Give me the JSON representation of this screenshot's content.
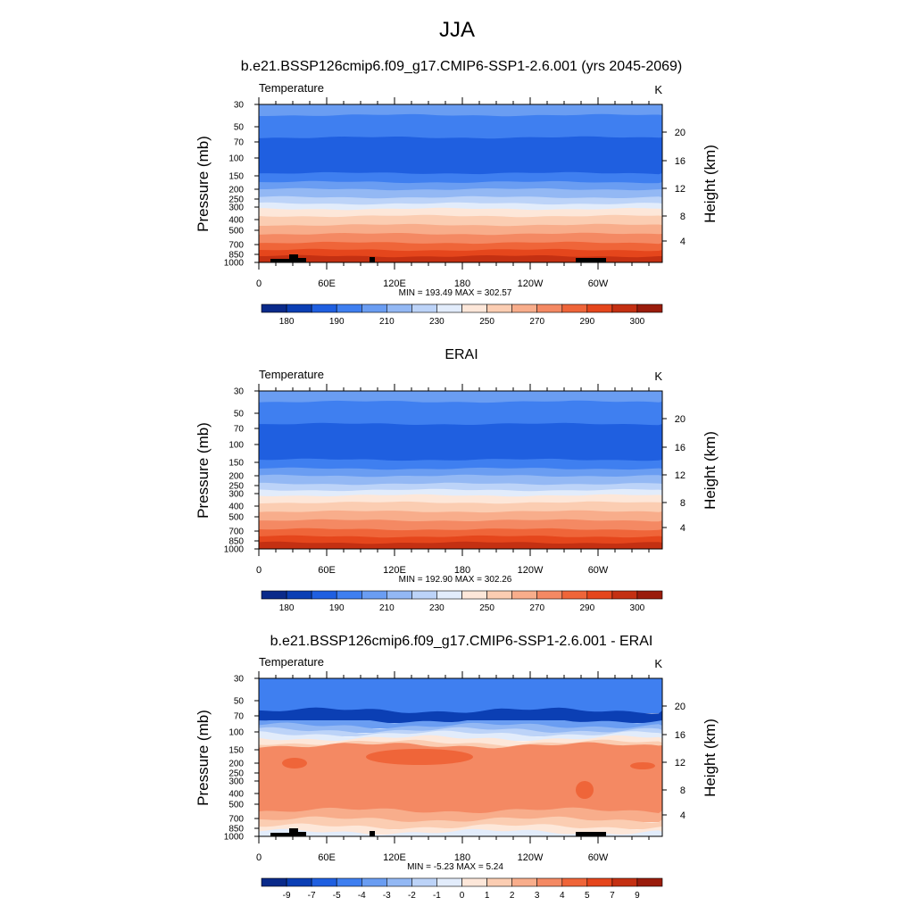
{
  "page": {
    "title": "JJA"
  },
  "colors": {
    "abs_palette": [
      "#0a2a8a",
      "#0b3fb4",
      "#1f5fe0",
      "#3f7ff0",
      "#6a9df2",
      "#93b8f4",
      "#bcd3f8",
      "#e2ecfb",
      "#fde7d9",
      "#fbcdb2",
      "#f8ad8b",
      "#f48963",
      "#ef6539",
      "#e5461c",
      "#c43012",
      "#9a1c0c",
      "#6b0a04"
    ],
    "diff_palette": [
      "#0a2a8a",
      "#0b3fb4",
      "#1f5fe0",
      "#3f7ff0",
      "#6a9df2",
      "#93b8f4",
      "#bcd3f8",
      "#e2ecfb",
      "#fde7d9",
      "#fbcdb2",
      "#f8ad8b",
      "#f48963",
      "#ef6539",
      "#e5461c",
      "#c43012",
      "#9a1c0c",
      "#6b0a04"
    ],
    "topography": "#000000"
  },
  "chart_data": [
    {
      "type": "heatmap",
      "title": "b.e21.BSSP126cmip6.f09_g17.CMIP6-SSP1-2.6.001 (yrs 2045-2069)",
      "left_label": "Temperature",
      "units_label": "K",
      "ylabel": "Pressure (mb)",
      "ylabel_right": "Height (km)",
      "x_ticks": [
        "0",
        "60E",
        "120E",
        "180",
        "120W",
        "60W"
      ],
      "y_ticks": [
        "30",
        "50",
        "70",
        "100",
        "150",
        "200",
        "250",
        "300",
        "400",
        "500",
        "700",
        "850",
        "1000"
      ],
      "y_ticks_right": [
        "20",
        "16",
        "12",
        "8",
        "4"
      ],
      "stats": "MIN = 193.49  MAX = 302.57",
      "colorbar_labels": [
        "180",
        "190",
        "210",
        "230",
        "250",
        "270",
        "290",
        "300"
      ],
      "has_topography": true
    },
    {
      "type": "heatmap",
      "title": "ERAI",
      "left_label": "Temperature",
      "units_label": "K",
      "ylabel": "Pressure (mb)",
      "ylabel_right": "Height (km)",
      "x_ticks": [
        "0",
        "60E",
        "120E",
        "180",
        "120W",
        "60W"
      ],
      "y_ticks": [
        "30",
        "50",
        "70",
        "100",
        "150",
        "200",
        "250",
        "300",
        "400",
        "500",
        "700",
        "850",
        "1000"
      ],
      "y_ticks_right": [
        "20",
        "16",
        "12",
        "8",
        "4"
      ],
      "stats": "MIN = 192.90  MAX = 302.26",
      "colorbar_labels": [
        "180",
        "190",
        "210",
        "230",
        "250",
        "270",
        "290",
        "300"
      ],
      "has_topography": false
    },
    {
      "type": "heatmap",
      "title": "b.e21.BSSP126cmip6.f09_g17.CMIP6-SSP1-2.6.001 - ERAI",
      "left_label": "Temperature",
      "units_label": "K",
      "ylabel": "Pressure (mb)",
      "ylabel_right": "Height (km)",
      "x_ticks": [
        "0",
        "60E",
        "120E",
        "180",
        "120W",
        "60W"
      ],
      "y_ticks": [
        "30",
        "50",
        "70",
        "100",
        "150",
        "200",
        "250",
        "300",
        "400",
        "500",
        "700",
        "850",
        "1000"
      ],
      "y_ticks_right": [
        "20",
        "16",
        "12",
        "8",
        "4"
      ],
      "stats": "MIN = -5.23  MAX =  5.24",
      "colorbar_labels": [
        "-9",
        "-7",
        "-5",
        "-4",
        "-3",
        "-2",
        "-1",
        "0",
        "1",
        "2",
        "3",
        "4",
        "5",
        "7",
        "9"
      ],
      "has_topography": true
    }
  ]
}
